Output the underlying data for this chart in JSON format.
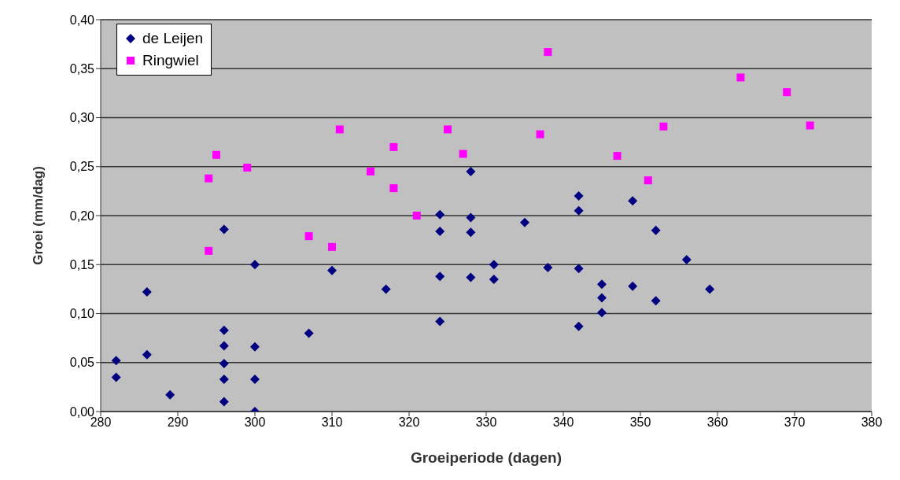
{
  "chart_data": {
    "type": "scatter",
    "xlabel": "Groeiperiode (dagen)",
    "ylabel": "Groei (mm/dag)",
    "xlim": [
      280,
      380
    ],
    "xticks": [
      280,
      290,
      300,
      310,
      320,
      330,
      340,
      350,
      360,
      370,
      380
    ],
    "ylim": [
      0,
      0.4
    ],
    "yticks": [
      {
        "value": 0,
        "label": "0,00"
      },
      {
        "value": 0.05,
        "label": "0,05"
      },
      {
        "value": 0.1,
        "label": "0,10"
      },
      {
        "value": 0.15,
        "label": "0,15"
      },
      {
        "value": 0.2,
        "label": "0,20"
      },
      {
        "value": 0.25,
        "label": "0,25"
      },
      {
        "value": 0.3,
        "label": "0,30"
      },
      {
        "value": 0.35,
        "label": "0,35"
      },
      {
        "value": 0.4,
        "label": "0,40"
      }
    ],
    "grid": "y",
    "legend": "top left",
    "series": [
      {
        "name": "de Leijen",
        "color": "#000080",
        "marker": "diamond",
        "x": [
          282,
          282,
          286,
          286,
          289,
          296,
          296,
          296,
          296,
          296,
          296,
          300,
          300,
          300,
          300,
          307,
          310,
          317,
          324,
          324,
          324,
          324,
          328,
          328,
          328,
          328,
          331,
          331,
          335,
          338,
          342,
          342,
          342,
          342,
          345,
          345,
          345,
          349,
          349,
          352,
          352,
          356,
          359
        ],
        "values": [
          0.052,
          0.035,
          0.122,
          0.058,
          0.017,
          0.186,
          0.083,
          0.067,
          0.049,
          0.033,
          0.01,
          0.15,
          0.066,
          0.033,
          0.0,
          0.08,
          0.144,
          0.125,
          0.201,
          0.184,
          0.138,
          0.092,
          0.245,
          0.198,
          0.183,
          0.137,
          0.15,
          0.135,
          0.193,
          0.147,
          0.22,
          0.205,
          0.146,
          0.087,
          0.13,
          0.116,
          0.101,
          0.215,
          0.128,
          0.185,
          0.113,
          0.155,
          0.125
        ]
      },
      {
        "name": "Ringwiel",
        "color": "#ff00ff",
        "marker": "square",
        "x": [
          294,
          294,
          295,
          299,
          307,
          310,
          311,
          315,
          318,
          318,
          321,
          325,
          327,
          337,
          338,
          347,
          351,
          353,
          363,
          369,
          372
        ],
        "values": [
          0.238,
          0.164,
          0.262,
          0.249,
          0.179,
          0.168,
          0.288,
          0.245,
          0.27,
          0.228,
          0.2,
          0.288,
          0.263,
          0.283,
          0.367,
          0.261,
          0.236,
          0.291,
          0.341,
          0.326,
          0.292
        ]
      }
    ]
  }
}
